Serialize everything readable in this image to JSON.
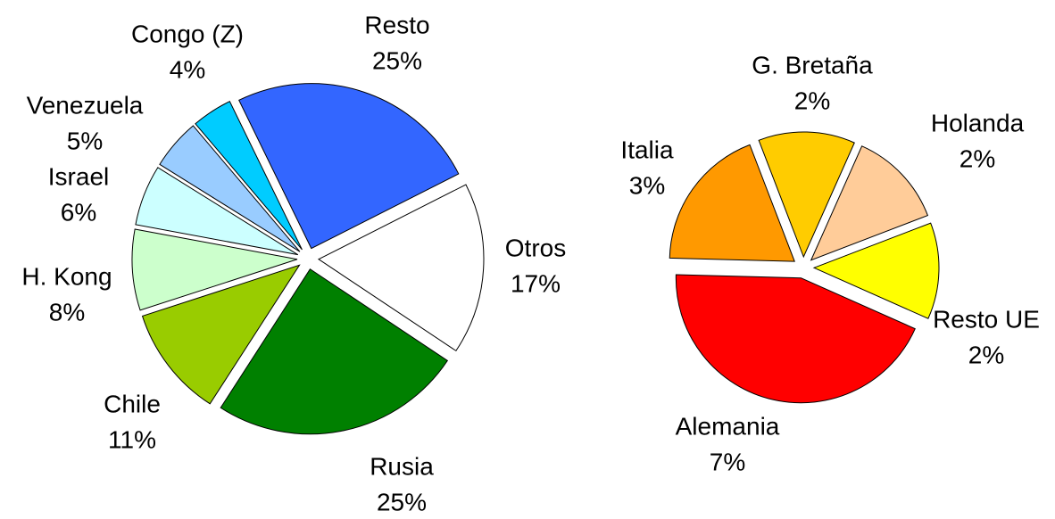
{
  "chart_data": [
    {
      "type": "pie",
      "categories": [
        "Resto",
        "Otros",
        "Rusia",
        "Chile",
        "H. Kong",
        "Israel",
        "Venezuela",
        "Congo (Z)"
      ],
      "values": [
        25,
        17,
        25,
        11,
        8,
        6,
        5,
        4
      ],
      "value_labels": [
        "25%",
        "17%",
        "25%",
        "11%",
        "8%",
        "6%",
        "5%",
        "4%"
      ],
      "colors": [
        "#3366FF",
        "#FFFFFF",
        "#008000",
        "#99CC00",
        "#CCFFCC",
        "#CCFFFF",
        "#99CCFF",
        "#00CCFF"
      ]
    },
    {
      "type": "pie",
      "categories": [
        "G. Bretaña",
        "Holanda",
        "Resto UE",
        "Alemania",
        "Italia"
      ],
      "values": [
        2,
        2,
        2,
        7,
        3
      ],
      "value_labels": [
        "2%",
        "2%",
        "2%",
        "7%",
        "3%"
      ],
      "colors": [
        "#FFCC00",
        "#FFCC99",
        "#FFFF00",
        "#FF0000",
        "#FF9900"
      ]
    }
  ]
}
